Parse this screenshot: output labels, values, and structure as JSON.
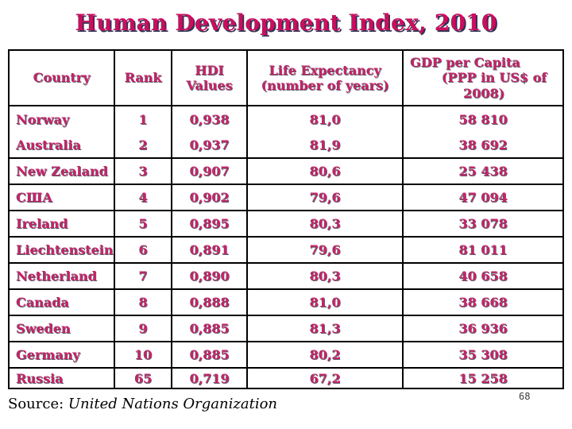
{
  "title": "Human Development Index, 2010",
  "colors": {
    "accent_magenta": "#c81060",
    "table_text": "#c22569",
    "title_shadow": "#343454",
    "border": "#000000",
    "background": "#ffffff"
  },
  "table": {
    "headers": {
      "country": "Country",
      "rank": "Rank",
      "hdi_line1": "HDI",
      "hdi_line2": "Values",
      "life_line1": "Life Expectancy",
      "life_line2": "(number of years)",
      "gdp_line1": "GDP per Capita",
      "gdp_line2": "(PPP in US$ of",
      "gdp_line3": "2008)"
    },
    "rows": [
      {
        "country": "Norway",
        "rank": "1",
        "hdi": "0,938",
        "life": "81,0",
        "gdp": "58 810"
      },
      {
        "country": "Australia",
        "rank": "2",
        "hdi": "0,937",
        "life": "81,9",
        "gdp": "38 692"
      },
      {
        "country": "New Zealand",
        "rank": "3",
        "hdi": "0,907",
        "life": "80,6",
        "gdp": "25 438"
      },
      {
        "country": "США",
        "rank": "4",
        "hdi": "0,902",
        "life": "79,6",
        "gdp": "47 094"
      },
      {
        "country": "Ireland",
        "rank": "5",
        "hdi": "0,895",
        "life": "80,3",
        "gdp": "33 078"
      },
      {
        "country": "Liechtenstein",
        "rank": "6",
        "hdi": "0,891",
        "life": "79,6",
        "gdp": "81 011"
      },
      {
        "country": "Netherland",
        "rank": "7",
        "hdi": "0,890",
        "life": "80,3",
        "gdp": "40 658"
      },
      {
        "country": "Canada",
        "rank": "8",
        "hdi": "0,888",
        "life": "81,0",
        "gdp": "38 668"
      },
      {
        "country": "Sweden",
        "rank": "9",
        "hdi": "0,885",
        "life": "81,3",
        "gdp": "36 936"
      },
      {
        "country": "Germany",
        "rank": "10",
        "hdi": "0,885",
        "life": "80,2",
        "gdp": "35 308"
      },
      {
        "country": "Russia",
        "rank": "65",
        "hdi": "0,719",
        "life": "67,2",
        "gdp": "15 258"
      }
    ]
  },
  "source": {
    "label": "Source: ",
    "value": "United Nations Organization"
  },
  "page": {
    "number": "68"
  }
}
